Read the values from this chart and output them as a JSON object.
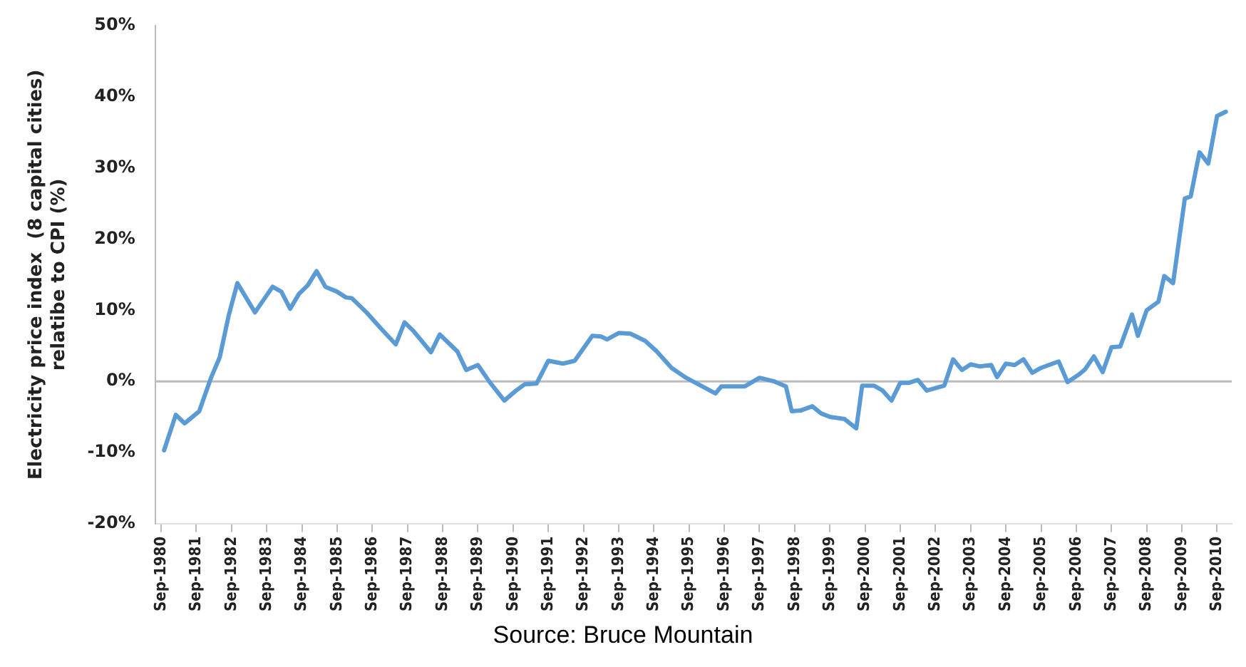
{
  "chart_data": {
    "type": "line",
    "ylabel": "Electricity price index  (8 capital cities)\nrelatibe to CPI (%)",
    "annotations": [
      "Source: Bruce Mountain"
    ],
    "xlim": [
      "1980-07",
      "2011-02"
    ],
    "xticks": [
      {
        "value": "1980-09",
        "label": "Sep-1980"
      },
      {
        "value": "1981-09",
        "label": "Sep-1981"
      },
      {
        "value": "1982-09",
        "label": "Sep-1982"
      },
      {
        "value": "1983-09",
        "label": "Sep-1983"
      },
      {
        "value": "1984-09",
        "label": "Sep-1984"
      },
      {
        "value": "1985-09",
        "label": "Sep-1985"
      },
      {
        "value": "1986-09",
        "label": "Sep-1986"
      },
      {
        "value": "1987-09",
        "label": "Sep-1987"
      },
      {
        "value": "1988-09",
        "label": "Sep-1988"
      },
      {
        "value": "1989-09",
        "label": "Sep-1989"
      },
      {
        "value": "1990-09",
        "label": "Sep-1990"
      },
      {
        "value": "1991-09",
        "label": "Sep-1991"
      },
      {
        "value": "1992-09",
        "label": "Sep-1992"
      },
      {
        "value": "1993-09",
        "label": "Sep-1993"
      },
      {
        "value": "1994-09",
        "label": "Sep-1994"
      },
      {
        "value": "1995-09",
        "label": "Sep-1995"
      },
      {
        "value": "1996-09",
        "label": "Sep-1996"
      },
      {
        "value": "1997-09",
        "label": "Sep-1997"
      },
      {
        "value": "1998-09",
        "label": "Sep-1998"
      },
      {
        "value": "1999-09",
        "label": "Sep-1999"
      },
      {
        "value": "2000-09",
        "label": "Sep-2000"
      },
      {
        "value": "2001-09",
        "label": "Sep-2001"
      },
      {
        "value": "2002-09",
        "label": "Sep-2002"
      },
      {
        "value": "2003-09",
        "label": "Sep-2003"
      },
      {
        "value": "2004-09",
        "label": "Sep-2004"
      },
      {
        "value": "2005-09",
        "label": "Sep-2005"
      },
      {
        "value": "2006-09",
        "label": "Sep-2006"
      },
      {
        "value": "2007-09",
        "label": "Sep-2007"
      },
      {
        "value": "2008-09",
        "label": "Sep-2008"
      },
      {
        "value": "2009-09",
        "label": "Sep-2009"
      },
      {
        "value": "2010-09",
        "label": "Sep-2010"
      }
    ],
    "ylim": [
      -20,
      50
    ],
    "yticks": [
      {
        "value": -20,
        "label": "-20%"
      },
      {
        "value": -10,
        "label": "-10%"
      },
      {
        "value": 0,
        "label": "0%"
      },
      {
        "value": 10,
        "label": "10%"
      },
      {
        "value": 20,
        "label": "20%"
      },
      {
        "value": 30,
        "label": "30%"
      },
      {
        "value": 40,
        "label": "40%"
      },
      {
        "value": 50,
        "label": "50%"
      }
    ],
    "grid": false,
    "ref_lines": [
      {
        "axis": "y",
        "value": 0,
        "color": "#bbbbbb",
        "line_style": "solid"
      }
    ],
    "legend": false,
    "marker": "none",
    "line_style": "solid",
    "series": [
      {
        "color": "#5b9bd5",
        "x": [
          "1980-10",
          "1981-02",
          "1981-05",
          "1981-10",
          "1982-02",
          "1982-05",
          "1982-08",
          "1982-11",
          "1983-05",
          "1983-11",
          "1984-02",
          "1984-05",
          "1984-08",
          "1984-11",
          "1985-02",
          "1985-05",
          "1985-09",
          "1985-12",
          "1986-02",
          "1986-07",
          "1986-12",
          "1987-05",
          "1987-08",
          "1987-11",
          "1988-05",
          "1988-08",
          "1989-02",
          "1989-05",
          "1989-09",
          "1990-01",
          "1990-06",
          "1990-10",
          "1991-01",
          "1991-05",
          "1991-09",
          "1992-02",
          "1992-06",
          "1992-12",
          "1993-03",
          "1993-05",
          "1993-09",
          "1994-01",
          "1994-06",
          "1994-10",
          "1995-03",
          "1995-08",
          "1996-01",
          "1996-06",
          "1996-08",
          "1997-04",
          "1997-09",
          "1998-02",
          "1998-06",
          "1998-08",
          "1998-11",
          "1999-03",
          "1999-06",
          "1999-09",
          "2000-02",
          "2000-06",
          "2000-08",
          "2000-12",
          "2001-03",
          "2001-06",
          "2001-09",
          "2001-12",
          "2002-03",
          "2002-06",
          "2002-12",
          "2003-03",
          "2003-06",
          "2003-09",
          "2003-12",
          "2004-04",
          "2004-06",
          "2004-09",
          "2004-12",
          "2005-03",
          "2005-06",
          "2005-09",
          "2006-03",
          "2006-06",
          "2006-10",
          "2006-12",
          "2007-03",
          "2007-06",
          "2007-09",
          "2007-12",
          "2008-04",
          "2008-06",
          "2008-09",
          "2009-01",
          "2009-03",
          "2009-06",
          "2009-10",
          "2009-12",
          "2010-03",
          "2010-06",
          "2010-09",
          "2010-12"
        ],
        "values": [
          -9.7,
          -4.7,
          -5.9,
          -4.2,
          0.5,
          3.4,
          9.2,
          13.8,
          9.7,
          13.3,
          12.6,
          10.2,
          12.3,
          13.5,
          15.5,
          13.3,
          12.6,
          11.8,
          11.7,
          9.7,
          7.4,
          5.2,
          8.3,
          7.1,
          4.1,
          6.6,
          4.2,
          1.6,
          2.3,
          -0.1,
          -2.7,
          -1.3,
          -0.4,
          -0.3,
          2.9,
          2.5,
          2.9,
          6.4,
          6.3,
          5.9,
          6.8,
          6.7,
          5.7,
          4.2,
          1.9,
          0.5,
          -0.6,
          -1.7,
          -0.7,
          -0.7,
          0.5,
          0,
          -0.7,
          -4.2,
          -4.1,
          -3.5,
          -4.5,
          -5.0,
          -5.3,
          -6.6,
          -0.6,
          -0.6,
          -1.3,
          -2.7,
          -0.2,
          -0.2,
          0.2,
          -1.3,
          -0.6,
          3.1,
          1.6,
          2.4,
          2.1,
          2.3,
          0.6,
          2.5,
          2.3,
          3.1,
          1.2,
          1.9,
          2.8,
          -0.1,
          1.0,
          1.7,
          3.5,
          1.3,
          4.8,
          4.9,
          9.4,
          6.4,
          10.0,
          11.2,
          14.8,
          13.8,
          25.7,
          26.0,
          32.2,
          30.6,
          37.3,
          37.9
        ]
      }
    ]
  }
}
